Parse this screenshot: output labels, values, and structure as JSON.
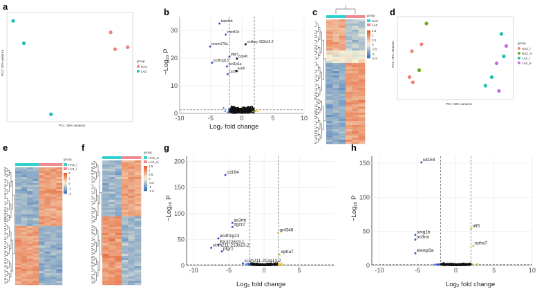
{
  "panels": [
    "a",
    "b",
    "c",
    "d",
    "e",
    "f",
    "g",
    "h"
  ],
  "colors": {
    "pca_group1": "#f08078",
    "pca_group2": "#1abfb0",
    "volcano_down": "#3355cc",
    "volcano_ns": "#111111",
    "volcano_up": "#e8c020",
    "heat_high": "#e45a2c",
    "heat_mid": "#f5f1d8",
    "heat_low": "#3a72b8",
    "annot_teal": "#2fd0d0",
    "annot_pink": "#f08a90",
    "d_green": "#6aa820",
    "d_purple": "#c070e0"
  },
  "chart_data": [
    {
      "panel": "a",
      "type": "scatter",
      "xlabel": "PC1: 46% variance",
      "ylabel": "PC2: 20% variance",
      "legend_title": "group",
      "legend": [
        "HAZ",
        "LAZ"
      ],
      "legend_placement": "right",
      "series": [
        {
          "name": "HAZ",
          "points": [
            [
              6.5,
              6.0
            ],
            [
              7.2,
              2.6
            ],
            [
              9.2,
              3.0
            ]
          ]
        },
        {
          "name": "LAZ",
          "points": [
            [
              -9.0,
              8.3
            ],
            [
              -7.3,
              3.8
            ],
            [
              -3.0,
              -10.5
            ]
          ]
        }
      ]
    },
    {
      "panel": "b",
      "type": "scatter",
      "title": "",
      "xlabel": "Log₂ fold change",
      "ylabel": "−Log₁₀ P",
      "xlim": [
        -10,
        10
      ],
      "ylim": [
        0,
        35
      ],
      "xticks": [
        "-10",
        "-5",
        "0",
        "5",
        "10"
      ],
      "yticks": [
        "0",
        "10",
        "20",
        "30"
      ],
      "thresholds": {
        "x": [
          -2,
          2
        ],
        "y": 1.3
      },
      "labels": [
        {
          "text": "tarp4eb",
          "x": -3.6,
          "y": 32.5
        },
        {
          "text": "cmc81b",
          "x": -2.6,
          "y": 28.5
        },
        {
          "text": "si:dkey-159b16.2",
          "x": 0.6,
          "y": 25.0
        },
        {
          "text": "tmem170a",
          "x": -5.1,
          "y": 24.2
        },
        {
          "text": "ptgr1",
          "x": -2.0,
          "y": 20.5
        },
        {
          "text": "cyp4b",
          "x": -0.8,
          "y": 19.8
        },
        {
          "text": "pcdh1g13",
          "x": -4.8,
          "y": 18.3
        },
        {
          "text": "ccrl1b1a",
          "x": -2.4,
          "y": 17.0
        },
        {
          "text": "kcnh",
          "x": -0.9,
          "y": 15.4
        },
        {
          "text": "cu3a4",
          "x": -2.3,
          "y": 14.2
        }
      ]
    },
    {
      "panel": "c",
      "type": "heatmap",
      "legend_title": "group",
      "legend": [
        "HAZ",
        "LAZ"
      ],
      "scale_ticks": [
        "1.5",
        "1",
        "0.5",
        "0",
        "-0.5",
        "-1",
        "-1.5"
      ]
    },
    {
      "panel": "d",
      "type": "scatter",
      "xlabel": "PC1: 58% variance",
      "ylabel": "PC2: 28% variance",
      "legend_title": "group",
      "legend": [
        "HAZ_l",
        "HAZ_m",
        "LAZ_l",
        "LAZ_m"
      ],
      "legend_placement": "right",
      "series": [
        {
          "name": "HAZ_l",
          "points": [
            [
              -9.0,
              4.0
            ],
            [
              -7.0,
              6.0
            ],
            [
              -9.5,
              -3.5
            ],
            [
              -8.8,
              -5.0
            ]
          ]
        },
        {
          "name": "HAZ_m",
          "points": [
            [
              -6.0,
              12.0
            ],
            [
              -7.5,
              -1.5
            ]
          ]
        },
        {
          "name": "LAZ_l",
          "points": [
            [
              9.5,
              9.0
            ],
            [
              10.0,
              2.5
            ],
            [
              7.5,
              -3.5
            ],
            [
              6.2,
              -6.0
            ]
          ]
        },
        {
          "name": "LAZ_m",
          "points": [
            [
              10.5,
              5.5
            ],
            [
              8.5,
              0.5
            ],
            [
              9.0,
              -7.5
            ]
          ]
        }
      ]
    },
    {
      "panel": "e",
      "type": "heatmap",
      "legend_title": "group",
      "legend": [
        "HAZ_l",
        "LAZ_l"
      ],
      "scale_ticks": [
        "2",
        "1",
        "0",
        "-1",
        "-2"
      ]
    },
    {
      "panel": "f",
      "type": "heatmap",
      "legend_title": "group",
      "legend": [
        "HAZ_m",
        "LAZ_m"
      ],
      "scale_ticks": [
        "1.5",
        "1",
        "0.5",
        "0",
        "-0.5",
        "-1",
        "-1.5"
      ]
    },
    {
      "panel": "g",
      "type": "scatter",
      "xlabel": "Log₂ fold change",
      "ylabel": "−Log₁₀ P",
      "xlim": [
        -11,
        10
      ],
      "ylim": [
        0,
        210
      ],
      "xticks": [
        "-10",
        "-5",
        "0",
        "5"
      ],
      "yticks": [
        "0",
        "50",
        "100",
        "150",
        "200"
      ],
      "thresholds": {
        "x": [
          -2,
          2
        ],
        "y": 1.3
      },
      "labels": [
        {
          "text": "cd164",
          "x": -5.5,
          "y": 174
        },
        {
          "text": "as3mt",
          "x": -4.5,
          "y": 82
        },
        {
          "text": "dgcr2",
          "x": -4.5,
          "y": 74
        },
        {
          "text": "gnf346",
          "x": 2.0,
          "y": 63
        },
        {
          "text": "pcdh1g13",
          "x": -6.5,
          "y": 52
        },
        {
          "text": "BX322619.1",
          "x": -6.5,
          "y": 40
        },
        {
          "text": "si:ch211-213a13.2",
          "x": -7.5,
          "y": 34
        },
        {
          "text": "ptgr1",
          "x": -6.0,
          "y": 27
        },
        {
          "text": "epha7",
          "x": 2.2,
          "y": 21
        },
        {
          "text": "si:ch211-213a13.2",
          "x": -3.0,
          "y": 4
        }
      ]
    },
    {
      "panel": "h",
      "type": "scatter",
      "xlabel": "Log₂ fold change",
      "ylabel": "−Log₁₀ P",
      "xlim": [
        -11,
        10
      ],
      "ylim": [
        0,
        160
      ],
      "xticks": [
        "-10",
        "-5",
        "0",
        "5",
        "10"
      ],
      "yticks": [
        "0",
        "50",
        "100",
        "150"
      ],
      "thresholds": {
        "x": [
          -2,
          2
        ],
        "y": 1.3
      },
      "labels": [
        {
          "text": "cd164",
          "x": -4.5,
          "y": 151
        },
        {
          "text": "afi5",
          "x": 2.0,
          "y": 54
        },
        {
          "text": "smg1b",
          "x": -5.3,
          "y": 45
        },
        {
          "text": "as3mt",
          "x": -5.3,
          "y": 38
        },
        {
          "text": "epha7",
          "x": 2.3,
          "y": 29
        },
        {
          "text": "elangl3a",
          "x": -5.3,
          "y": 18
        }
      ]
    }
  ]
}
